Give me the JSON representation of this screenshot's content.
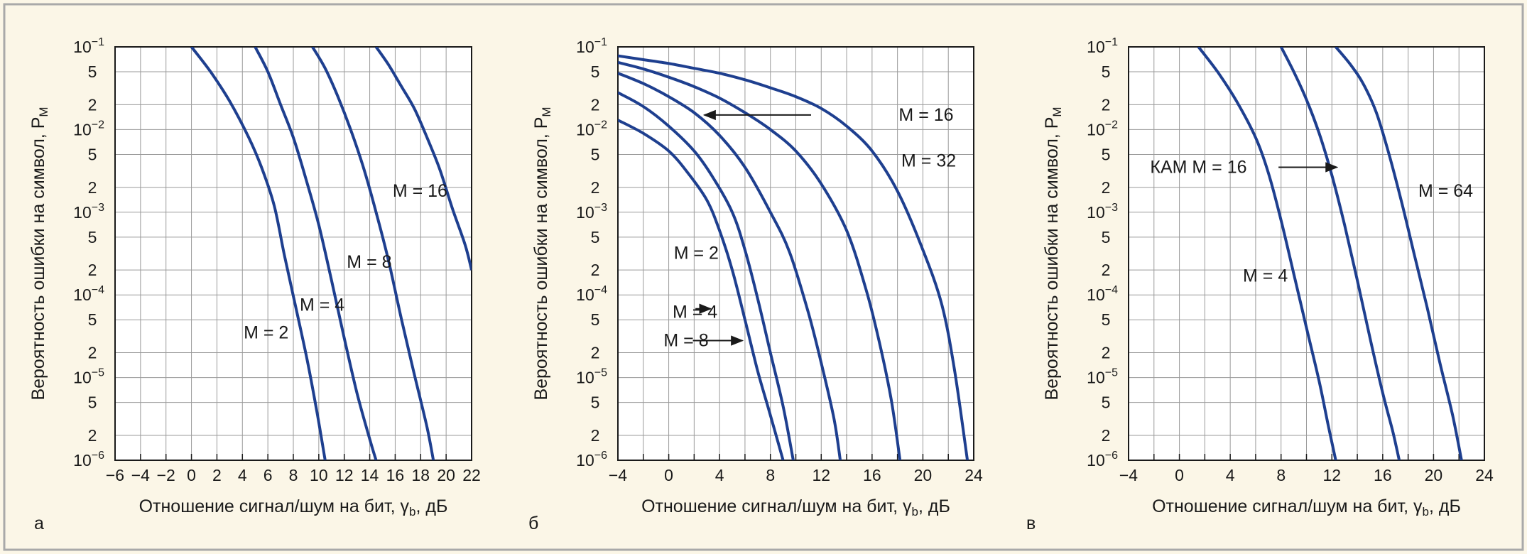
{
  "figure": {
    "background": "#fbf6e7",
    "border_color": "#a9a9a9",
    "grid_color": "#9a9a9a",
    "curve_color": "#1e3f8f"
  },
  "chart_data": [
    {
      "type": "line",
      "panel_label": "а",
      "title": "",
      "xlabel": "Отношение сигнал/шум на бит, γb, дБ",
      "ylabel": "Вероятность ошибки на символ, PM",
      "xlim": [
        -6,
        22
      ],
      "ylim": [
        1e-06,
        0.1
      ],
      "y_scale": "log",
      "grid": true,
      "x_ticks": [
        -6,
        -4,
        -2,
        0,
        2,
        4,
        6,
        8,
        10,
        12,
        14,
        16,
        18,
        20,
        22
      ],
      "x_tick_labels": [
        "−6",
        "−4",
        "−2",
        "0",
        "2",
        "4",
        "6",
        "8",
        "10",
        "12",
        "14",
        "16",
        "18",
        "20",
        "22"
      ],
      "y_major_ticks": [
        0.1,
        0.01,
        0.001,
        0.0001,
        1e-05,
        1e-06
      ],
      "y_major_exponents": [
        "−1",
        "−2",
        "−3",
        "−4",
        "−5",
        "−6"
      ],
      "y_minor_ticks": [
        0.05,
        0.02,
        0.005,
        0.002,
        0.0005,
        0.0002,
        5e-05,
        2e-05,
        5e-06,
        2e-06
      ],
      "y_minor_labels": [
        "5",
        "2",
        "5",
        "2",
        "5",
        "2",
        "5",
        "2",
        "5",
        "2"
      ],
      "series": [
        {
          "x": [
            0,
            1.5,
            3,
            4.5,
            5.5,
            6.5,
            7.3,
            8.2,
            9.1,
            9.9,
            10.5
          ],
          "y": [
            0.1,
            0.05,
            0.022,
            0.008,
            0.0035,
            0.0012,
            0.0003,
            7e-05,
            1.6e-05,
            3.5e-06,
            1e-06
          ]
        },
        {
          "x": [
            5,
            6,
            7,
            8,
            9,
            10,
            11,
            12,
            13,
            14,
            14.5
          ],
          "y": [
            0.1,
            0.05,
            0.02,
            0.008,
            0.0025,
            0.0007,
            0.00015,
            3e-05,
            6.5e-06,
            1.8e-06,
            1e-06
          ]
        },
        {
          "x": [
            9.5,
            10.5,
            11.5,
            12.5,
            13.5,
            14.5,
            15.5,
            16.5,
            17.5,
            18.5,
            19
          ],
          "y": [
            0.1,
            0.055,
            0.025,
            0.01,
            0.0035,
            0.001,
            0.00025,
            5e-05,
            1.1e-05,
            2.5e-06,
            1e-06
          ]
        },
        {
          "x": [
            14.5,
            15.5,
            16.5,
            17.5,
            18.5,
            19.5,
            20.5,
            21.5,
            22
          ],
          "y": [
            0.1,
            0.06,
            0.033,
            0.018,
            0.008,
            0.0033,
            0.0011,
            0.0004,
            0.0002
          ]
        }
      ],
      "annotations": [
        {
          "text": "M = 2",
          "x": 4.1,
          "y": 3.5e-05,
          "anchor": "start"
        },
        {
          "text": "M = 4",
          "x": 8.5,
          "y": 7.5e-05,
          "anchor": "start"
        },
        {
          "text": "M = 8",
          "x": 12.2,
          "y": 0.00025,
          "anchor": "start"
        },
        {
          "text": "M = 16",
          "x": 15.8,
          "y": 0.0018,
          "anchor": "start"
        }
      ],
      "arrows": []
    },
    {
      "type": "line",
      "panel_label": "б",
      "title": "",
      "xlabel": "Отношение сигнал/шум на бит, γb, дБ",
      "ylabel": "Вероятность ошибки на символ, PM",
      "xlim": [
        -4,
        24
      ],
      "ylim": [
        1e-06,
        0.1
      ],
      "y_scale": "log",
      "grid": true,
      "x_ticks": [
        -4,
        -2,
        0,
        2,
        4,
        6,
        8,
        10,
        12,
        14,
        16,
        18,
        20,
        22,
        24
      ],
      "x_tick_labels": [
        "−4",
        "",
        "0",
        "",
        "4",
        "",
        "8",
        "",
        "12",
        "",
        "16",
        "",
        "20",
        "",
        "24"
      ],
      "y_major_ticks": [
        0.1,
        0.01,
        0.001,
        0.0001,
        1e-05,
        1e-06
      ],
      "y_major_exponents": [
        "−1",
        "−2",
        "−3",
        "−4",
        "−5",
        "−6"
      ],
      "y_minor_ticks": [
        0.05,
        0.02,
        0.005,
        0.002,
        0.0005,
        0.0002,
        5e-05,
        2e-05,
        5e-06,
        2e-06
      ],
      "y_minor_labels": [
        "5",
        "2",
        "5",
        "2",
        "5",
        "2",
        "5",
        "2",
        "5",
        "2"
      ],
      "series": [
        {
          "x": [
            -4,
            -2,
            0,
            1.5,
            3,
            4,
            5,
            6,
            7,
            8,
            9
          ],
          "y": [
            0.013,
            0.009,
            0.0055,
            0.003,
            0.0014,
            0.0006,
            0.0002,
            5e-05,
            1.2e-05,
            3.5e-06,
            1e-06
          ]
        },
        {
          "x": [
            -4,
            -2,
            0,
            2,
            3.5,
            5,
            6,
            7,
            8,
            9,
            9.8
          ],
          "y": [
            0.028,
            0.019,
            0.011,
            0.0055,
            0.0026,
            0.001,
            0.00035,
            9e-05,
            2e-05,
            4.5e-06,
            1e-06
          ]
        },
        {
          "x": [
            -4,
            -2,
            0,
            2,
            4,
            6,
            8,
            9.5,
            11,
            12,
            13,
            13.5
          ],
          "y": [
            0.048,
            0.036,
            0.025,
            0.016,
            0.0085,
            0.0035,
            0.001,
            0.00033,
            6e-05,
            1.5e-05,
            3.2e-06,
            1e-06
          ]
        },
        {
          "x": [
            -4,
            -2,
            0,
            2,
            4,
            6,
            8,
            10,
            12,
            14,
            15.5,
            16.5,
            17.5,
            18.2
          ],
          "y": [
            0.065,
            0.054,
            0.043,
            0.033,
            0.024,
            0.016,
            0.01,
            0.0055,
            0.0022,
            0.0006,
            0.00012,
            3e-05,
            5.5e-06,
            1e-06
          ]
        },
        {
          "x": [
            -4,
            -2,
            0,
            2,
            4,
            6,
            8,
            10,
            12,
            14,
            16,
            18,
            20,
            21.5,
            22.5,
            23.5
          ],
          "y": [
            0.078,
            0.07,
            0.063,
            0.055,
            0.048,
            0.04,
            0.032,
            0.025,
            0.018,
            0.011,
            0.0055,
            0.0018,
            0.00035,
            7.5e-05,
            1.2e-05,
            1e-06
          ]
        }
      ],
      "annotations": [
        {
          "text": "M = 16",
          "x": 18.1,
          "y": 0.015,
          "anchor": "start"
        },
        {
          "text": "M = 32",
          "x": 18.3,
          "y": 0.0042,
          "anchor": "start"
        },
        {
          "text": "M = 2",
          "x": 0.4,
          "y": 0.00032,
          "anchor": "start"
        },
        {
          "text": "M = 4",
          "x": 0.3,
          "y": 6.2e-05,
          "anchor": "start"
        },
        {
          "text": "M = 8",
          "x": -0.4,
          "y": 2.8e-05,
          "anchor": "start"
        }
      ],
      "arrows": [
        {
          "from_x": 11.2,
          "from_y": 0.015,
          "to_x": 2.8,
          "to_y": 0.015
        },
        {
          "from_x": 2.1,
          "from_y": 6.8e-05,
          "to_x": 3.3,
          "to_y": 6.8e-05
        },
        {
          "from_x": 1.9,
          "from_y": 2.8e-05,
          "to_x": 5.8,
          "to_y": 2.8e-05
        }
      ]
    },
    {
      "type": "line",
      "panel_label": "в",
      "title": "",
      "xlabel": "Отношение сигнал/шум на бит, γb, дБ",
      "ylabel": "Вероятность ошибки на символ, PM",
      "xlim": [
        -4,
        24
      ],
      "ylim": [
        1e-06,
        0.1
      ],
      "y_scale": "log",
      "grid": true,
      "x_ticks": [
        -4,
        -2,
        0,
        2,
        4,
        6,
        8,
        10,
        12,
        14,
        16,
        18,
        20,
        22,
        24
      ],
      "x_tick_labels": [
        "−4",
        "",
        "0",
        "",
        "4",
        "",
        "8",
        "",
        "12",
        "",
        "16",
        "",
        "20",
        "",
        "24"
      ],
      "y_major_ticks": [
        0.1,
        0.01,
        0.001,
        0.0001,
        1e-05,
        1e-06
      ],
      "y_major_exponents": [
        "−1",
        "−2",
        "−3",
        "−4",
        "−5",
        "−6"
      ],
      "y_minor_ticks": [
        0.05,
        0.02,
        0.005,
        0.002,
        0.0005,
        0.0002,
        5e-05,
        2e-05,
        5e-06,
        2e-06
      ],
      "y_minor_labels": [
        "5",
        "2",
        "5",
        "2",
        "5",
        "2",
        "5",
        "2",
        "5",
        "2"
      ],
      "series": [
        {
          "x": [
            1.5,
            3,
            4.5,
            6,
            7,
            8,
            9,
            10,
            11,
            11.7,
            12.3
          ],
          "y": [
            0.1,
            0.05,
            0.022,
            0.008,
            0.003,
            0.0008,
            0.00018,
            4e-05,
            9e-06,
            2.7e-06,
            1e-06
          ]
        },
        {
          "x": [
            8,
            9,
            10,
            11,
            12,
            13,
            14,
            15,
            16,
            16.8,
            17.3
          ],
          "y": [
            0.1,
            0.05,
            0.023,
            0.009,
            0.0028,
            0.0007,
            0.00015,
            3e-05,
            6.5e-06,
            2.2e-06,
            1e-06
          ]
        },
        {
          "x": [
            12.3,
            13.5,
            14.5,
            15.5,
            16.5,
            17.5,
            18.5,
            19.5,
            20.5,
            21.5,
            22.2
          ],
          "y": [
            0.1,
            0.06,
            0.035,
            0.016,
            0.005,
            0.0013,
            0.0003,
            7e-05,
            1.5e-05,
            3.5e-06,
            1e-06
          ]
        }
      ],
      "annotations": [
        {
          "text": "КАМ M = 16",
          "x": -2.3,
          "y": 0.0035,
          "anchor": "start"
        },
        {
          "text": "M = 4",
          "x": 5,
          "y": 0.00017,
          "anchor": "start"
        },
        {
          "text": "M = 64",
          "x": 18.8,
          "y": 0.0018,
          "anchor": "start"
        }
      ],
      "arrows": [
        {
          "from_x": 7.8,
          "from_y": 0.0035,
          "to_x": 12.4,
          "to_y": 0.0035
        }
      ]
    }
  ]
}
